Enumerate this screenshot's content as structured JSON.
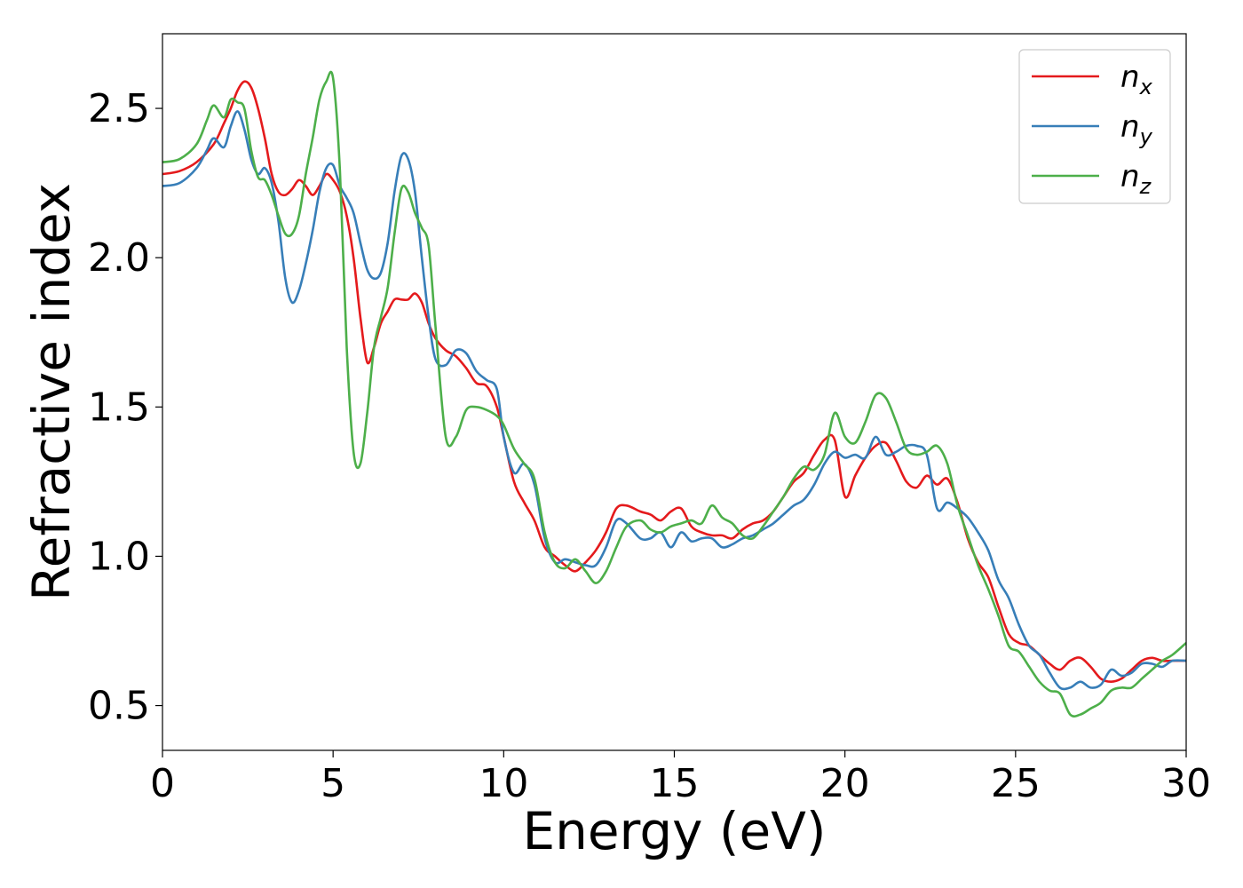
{
  "chart_data": {
    "type": "line",
    "title": "",
    "xlabel": "Energy (eV)",
    "ylabel": "Refractive index",
    "xlim": [
      0,
      30
    ],
    "ylim": [
      0.35,
      2.75
    ],
    "xticks": [
      0,
      5,
      10,
      15,
      20,
      25,
      30
    ],
    "xtick_labels": [
      "0",
      "5",
      "10",
      "15",
      "20",
      "25",
      "30"
    ],
    "yticks": [
      0.5,
      1.0,
      1.5,
      2.0,
      2.5
    ],
    "ytick_labels": [
      "0.5",
      "1.0",
      "1.5",
      "2.0",
      "2.5"
    ],
    "grid": false,
    "legend_position": "top-right",
    "series": [
      {
        "name": "n",
        "subscript": "x",
        "color": "#e41a1c",
        "x": [
          0,
          0.5,
          1.0,
          1.5,
          1.8,
          2.0,
          2.2,
          2.4,
          2.6,
          2.8,
          3.0,
          3.2,
          3.4,
          3.6,
          3.8,
          4.0,
          4.2,
          4.4,
          4.6,
          4.8,
          5.0,
          5.2,
          5.4,
          5.6,
          5.8,
          6.0,
          6.2,
          6.4,
          6.6,
          6.8,
          7.0,
          7.2,
          7.4,
          7.6,
          7.8,
          8.0,
          8.3,
          8.6,
          8.9,
          9.2,
          9.5,
          9.8,
          10.0,
          10.3,
          10.6,
          10.9,
          11.2,
          11.5,
          11.8,
          12.1,
          12.4,
          12.7,
          13.0,
          13.3,
          13.6,
          14.0,
          14.3,
          14.6,
          14.9,
          15.2,
          15.5,
          15.8,
          16.1,
          16.4,
          16.7,
          17.0,
          17.3,
          17.6,
          17.9,
          18.2,
          18.5,
          18.8,
          19.1,
          19.4,
          19.7,
          20.0,
          20.3,
          20.6,
          20.9,
          21.2,
          21.5,
          21.8,
          22.1,
          22.4,
          22.7,
          23.0,
          23.3,
          23.6,
          23.9,
          24.2,
          24.5,
          24.8,
          25.1,
          25.4,
          25.7,
          26.0,
          26.3,
          26.6,
          26.9,
          27.2,
          27.5,
          27.8,
          28.1,
          28.4,
          28.7,
          29.0,
          29.3,
          29.6,
          30.0
        ],
        "values": [
          2.28,
          2.29,
          2.32,
          2.38,
          2.45,
          2.5,
          2.56,
          2.59,
          2.57,
          2.5,
          2.4,
          2.28,
          2.22,
          2.21,
          2.23,
          2.26,
          2.24,
          2.21,
          2.24,
          2.28,
          2.26,
          2.22,
          2.14,
          2.0,
          1.8,
          1.65,
          1.7,
          1.78,
          1.82,
          1.86,
          1.86,
          1.86,
          1.88,
          1.85,
          1.78,
          1.73,
          1.69,
          1.67,
          1.63,
          1.58,
          1.57,
          1.5,
          1.4,
          1.25,
          1.18,
          1.12,
          1.03,
          1.0,
          0.97,
          0.95,
          0.98,
          1.02,
          1.08,
          1.16,
          1.17,
          1.15,
          1.14,
          1.12,
          1.15,
          1.16,
          1.1,
          1.08,
          1.07,
          1.07,
          1.06,
          1.09,
          1.11,
          1.12,
          1.15,
          1.2,
          1.25,
          1.28,
          1.34,
          1.39,
          1.39,
          1.2,
          1.27,
          1.33,
          1.37,
          1.38,
          1.32,
          1.25,
          1.23,
          1.27,
          1.24,
          1.26,
          1.18,
          1.06,
          0.98,
          0.93,
          0.83,
          0.74,
          0.71,
          0.7,
          0.67,
          0.64,
          0.62,
          0.65,
          0.66,
          0.63,
          0.59,
          0.58,
          0.59,
          0.62,
          0.65,
          0.66,
          0.65,
          0.65,
          0.65
        ]
      },
      {
        "name": "n",
        "subscript": "y",
        "color": "#377eb8",
        "x": [
          0,
          0.5,
          1.0,
          1.3,
          1.5,
          1.8,
          2.0,
          2.2,
          2.4,
          2.6,
          2.8,
          3.0,
          3.2,
          3.4,
          3.6,
          3.8,
          4.0,
          4.2,
          4.4,
          4.6,
          4.8,
          5.0,
          5.2,
          5.4,
          5.6,
          5.8,
          6.0,
          6.2,
          6.4,
          6.6,
          6.8,
          7.0,
          7.2,
          7.4,
          7.6,
          7.8,
          8.0,
          8.3,
          8.6,
          8.9,
          9.2,
          9.5,
          9.8,
          10.0,
          10.3,
          10.6,
          10.9,
          11.2,
          11.5,
          11.8,
          12.1,
          12.4,
          12.7,
          13.0,
          13.3,
          13.6,
          14.0,
          14.3,
          14.6,
          14.9,
          15.2,
          15.5,
          15.8,
          16.1,
          16.4,
          16.7,
          17.0,
          17.3,
          17.6,
          17.9,
          18.2,
          18.5,
          18.8,
          19.1,
          19.4,
          19.7,
          20.0,
          20.3,
          20.6,
          20.9,
          21.2,
          21.5,
          21.8,
          22.1,
          22.4,
          22.7,
          23.0,
          23.3,
          23.6,
          23.9,
          24.2,
          24.5,
          24.8,
          25.1,
          25.4,
          25.7,
          26.0,
          26.3,
          26.6,
          26.9,
          27.2,
          27.5,
          27.8,
          28.1,
          28.4,
          28.7,
          29.0,
          29.3,
          29.6,
          30.0
        ],
        "values": [
          2.24,
          2.25,
          2.3,
          2.36,
          2.4,
          2.37,
          2.44,
          2.49,
          2.43,
          2.33,
          2.28,
          2.3,
          2.25,
          2.12,
          1.93,
          1.85,
          1.89,
          1.98,
          2.09,
          2.22,
          2.3,
          2.31,
          2.24,
          2.2,
          2.15,
          2.05,
          1.96,
          1.93,
          1.95,
          2.05,
          2.22,
          2.34,
          2.33,
          2.22,
          2.0,
          1.8,
          1.66,
          1.64,
          1.69,
          1.68,
          1.62,
          1.59,
          1.56,
          1.4,
          1.28,
          1.31,
          1.24,
          1.06,
          0.98,
          0.99,
          0.98,
          0.97,
          0.97,
          1.03,
          1.12,
          1.11,
          1.06,
          1.06,
          1.08,
          1.03,
          1.08,
          1.05,
          1.06,
          1.06,
          1.03,
          1.04,
          1.06,
          1.07,
          1.09,
          1.11,
          1.14,
          1.17,
          1.19,
          1.24,
          1.31,
          1.35,
          1.33,
          1.34,
          1.33,
          1.4,
          1.34,
          1.35,
          1.37,
          1.37,
          1.34,
          1.16,
          1.18,
          1.16,
          1.13,
          1.08,
          1.02,
          0.92,
          0.86,
          0.77,
          0.7,
          0.67,
          0.61,
          0.56,
          0.56,
          0.58,
          0.56,
          0.57,
          0.62,
          0.6,
          0.61,
          0.64,
          0.64,
          0.63,
          0.65,
          0.65
        ]
      },
      {
        "name": "n",
        "subscript": "z",
        "color": "#4daf4a",
        "x": [
          0,
          0.5,
          1.0,
          1.3,
          1.5,
          1.8,
          2.0,
          2.2,
          2.4,
          2.6,
          2.8,
          3.0,
          3.2,
          3.4,
          3.6,
          3.8,
          4.0,
          4.2,
          4.4,
          4.6,
          4.8,
          5.0,
          5.2,
          5.4,
          5.6,
          5.8,
          6.0,
          6.2,
          6.4,
          6.6,
          6.8,
          7.0,
          7.2,
          7.4,
          7.6,
          7.8,
          8.0,
          8.3,
          8.6,
          8.9,
          9.2,
          9.5,
          9.8,
          10.0,
          10.3,
          10.6,
          10.9,
          11.2,
          11.5,
          11.8,
          12.1,
          12.4,
          12.7,
          13.0,
          13.3,
          13.6,
          14.0,
          14.3,
          14.6,
          14.9,
          15.2,
          15.5,
          15.8,
          16.1,
          16.4,
          16.7,
          17.0,
          17.3,
          17.6,
          17.9,
          18.2,
          18.5,
          18.8,
          19.1,
          19.4,
          19.7,
          20.0,
          20.3,
          20.6,
          20.9,
          21.2,
          21.5,
          21.8,
          22.1,
          22.4,
          22.7,
          23.0,
          23.3,
          23.6,
          23.9,
          24.2,
          24.5,
          24.8,
          25.1,
          25.4,
          25.7,
          26.0,
          26.3,
          26.6,
          26.9,
          27.2,
          27.5,
          27.8,
          28.1,
          28.4,
          28.7,
          29.0,
          29.3,
          29.6,
          30.0
        ],
        "values": [
          2.32,
          2.33,
          2.38,
          2.46,
          2.51,
          2.47,
          2.53,
          2.52,
          2.5,
          2.36,
          2.27,
          2.26,
          2.21,
          2.14,
          2.08,
          2.08,
          2.14,
          2.28,
          2.4,
          2.53,
          2.59,
          2.6,
          2.29,
          1.7,
          1.35,
          1.31,
          1.48,
          1.7,
          1.8,
          1.9,
          2.08,
          2.23,
          2.22,
          2.15,
          2.1,
          2.04,
          1.77,
          1.4,
          1.4,
          1.49,
          1.5,
          1.49,
          1.47,
          1.44,
          1.36,
          1.31,
          1.26,
          1.08,
          0.98,
          0.96,
          0.99,
          0.95,
          0.91,
          0.95,
          1.03,
          1.1,
          1.12,
          1.09,
          1.08,
          1.1,
          1.11,
          1.12,
          1.11,
          1.17,
          1.13,
          1.11,
          1.07,
          1.06,
          1.1,
          1.15,
          1.2,
          1.26,
          1.3,
          1.29,
          1.34,
          1.48,
          1.4,
          1.38,
          1.45,
          1.54,
          1.53,
          1.45,
          1.36,
          1.34,
          1.35,
          1.37,
          1.31,
          1.17,
          1.07,
          0.97,
          0.89,
          0.8,
          0.7,
          0.68,
          0.63,
          0.58,
          0.55,
          0.54,
          0.47,
          0.47,
          0.49,
          0.51,
          0.55,
          0.56,
          0.56,
          0.59,
          0.62,
          0.65,
          0.67,
          0.71
        ]
      }
    ]
  }
}
